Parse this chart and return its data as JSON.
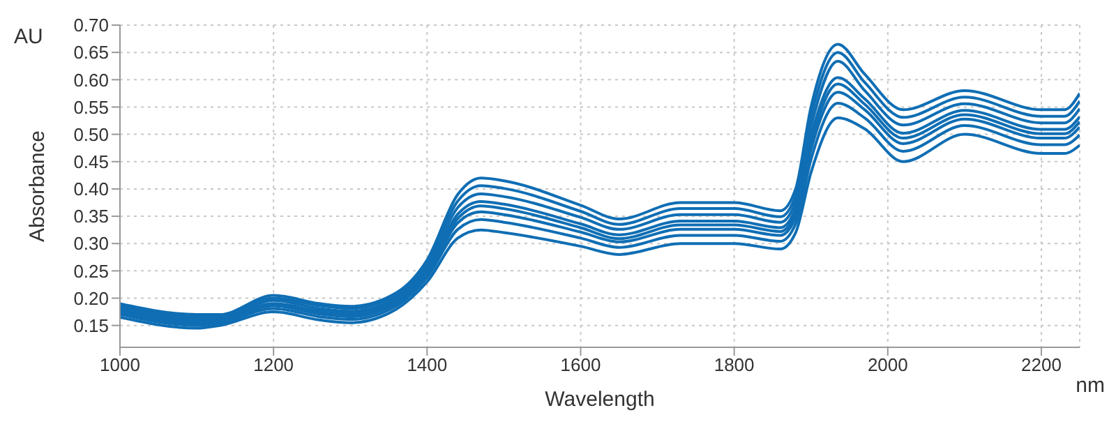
{
  "chart_data": {
    "type": "line",
    "xlabel": "Wavelength",
    "ylabel": "Absorbance",
    "annotations": [
      "AU",
      "nm"
    ],
    "x": [
      1000,
      1100,
      1130,
      1200,
      1260,
      1300,
      1360,
      1400,
      1440,
      1470,
      1500,
      1600,
      1650,
      1730,
      1800,
      1860,
      1880,
      1900,
      1935,
      1970,
      2020,
      2100,
      2200,
      2230,
      2250
    ],
    "series": [
      {
        "color": "#0f6eb4",
        "values": [
          0.19,
          0.17,
          0.17,
          0.205,
          0.19,
          0.185,
          0.21,
          0.27,
          0.39,
          0.42,
          0.415,
          0.37,
          0.345,
          0.375,
          0.375,
          0.36,
          0.4,
          0.55,
          0.665,
          0.61,
          0.545,
          0.58,
          0.545,
          0.545,
          0.575
        ]
      },
      {
        "color": "#0f6eb4",
        "values": [
          0.186,
          0.166,
          0.167,
          0.2,
          0.186,
          0.181,
          0.206,
          0.264,
          0.378,
          0.406,
          0.401,
          0.359,
          0.335,
          0.364,
          0.364,
          0.349,
          0.388,
          0.532,
          0.65,
          0.595,
          0.531,
          0.568,
          0.533,
          0.533,
          0.561
        ]
      },
      {
        "color": "#0f6eb4",
        "values": [
          0.183,
          0.163,
          0.164,
          0.196,
          0.181,
          0.176,
          0.201,
          0.258,
          0.366,
          0.391,
          0.386,
          0.348,
          0.326,
          0.353,
          0.353,
          0.339,
          0.376,
          0.514,
          0.634,
          0.58,
          0.517,
          0.556,
          0.521,
          0.521,
          0.547
        ]
      },
      {
        "color": "#0f6eb4",
        "values": [
          0.179,
          0.159,
          0.161,
          0.19,
          0.177,
          0.172,
          0.197,
          0.252,
          0.354,
          0.377,
          0.372,
          0.336,
          0.316,
          0.341,
          0.341,
          0.329,
          0.364,
          0.496,
          0.604,
          0.565,
          0.502,
          0.544,
          0.509,
          0.509,
          0.532
        ]
      },
      {
        "color": "#0f6eb4",
        "values": [
          0.176,
          0.156,
          0.159,
          0.189,
          0.174,
          0.169,
          0.194,
          0.248,
          0.346,
          0.369,
          0.364,
          0.329,
          0.309,
          0.334,
          0.334,
          0.322,
          0.356,
          0.484,
          0.592,
          0.555,
          0.493,
          0.536,
          0.501,
          0.501,
          0.523
        ]
      },
      {
        "color": "#0f6eb4",
        "values": [
          0.174,
          0.154,
          0.157,
          0.186,
          0.171,
          0.166,
          0.191,
          0.244,
          0.338,
          0.358,
          0.353,
          0.321,
          0.303,
          0.326,
          0.326,
          0.315,
          0.348,
          0.472,
          0.577,
          0.545,
          0.483,
          0.528,
          0.493,
          0.493,
          0.513
        ]
      },
      {
        "color": "#0f6eb4",
        "values": [
          0.17,
          0.15,
          0.154,
          0.181,
          0.166,
          0.161,
          0.186,
          0.238,
          0.326,
          0.344,
          0.339,
          0.31,
          0.293,
          0.315,
          0.315,
          0.304,
          0.336,
          0.454,
          0.557,
          0.53,
          0.469,
          0.516,
          0.481,
          0.481,
          0.499
        ]
      },
      {
        "color": "#0f6eb4",
        "values": [
          0.165,
          0.145,
          0.15,
          0.175,
          0.16,
          0.155,
          0.18,
          0.23,
          0.31,
          0.325,
          0.32,
          0.295,
          0.28,
          0.3,
          0.3,
          0.29,
          0.32,
          0.43,
          0.53,
          0.51,
          0.45,
          0.5,
          0.465,
          0.465,
          0.48
        ]
      }
    ],
    "xlim": [
      1000,
      2250
    ],
    "xticks": [
      1000,
      1200,
      1400,
      1600,
      1800,
      2000,
      2200
    ],
    "ylim": [
      0.11,
      0.7
    ],
    "yticks": [
      0.15,
      {
        "value": 0.2,
        "label": "0.20"
      },
      0.25,
      {
        "value": 0.3,
        "label": "0.30"
      },
      0.35,
      {
        "value": 0.4,
        "label": "0.40"
      },
      0.45,
      {
        "value": 0.5,
        "label": "0.50"
      },
      0.55,
      {
        "value": 0.6,
        "label": "0.60"
      },
      0.65,
      {
        "value": 0.7,
        "label": "0.70"
      }
    ],
    "grid": true,
    "marker": "none",
    "line_style": "solid"
  }
}
